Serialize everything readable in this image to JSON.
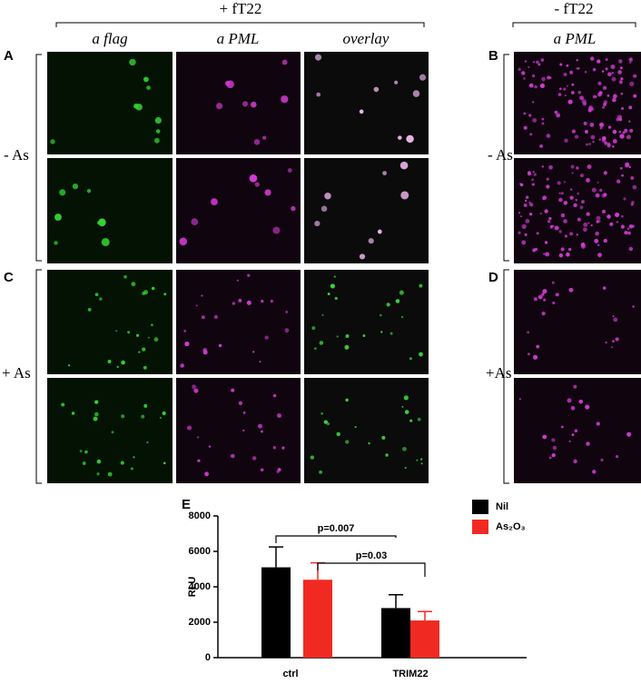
{
  "figure": {
    "headers": [
      {
        "label": "+ fT22"
      },
      {
        "label": "- fT22"
      }
    ],
    "columns": [
      "a flag",
      "a PML",
      "overlay",
      "a PML"
    ],
    "panel_letters": [
      "A",
      "B",
      "C",
      "D",
      "E"
    ],
    "row_labels": [
      "- As",
      "- As",
      "+ As",
      "+As"
    ]
  },
  "chart_data": {
    "type": "bar",
    "ylabel": "RLU",
    "categories": [
      "ctrl",
      "TRIM22"
    ],
    "series": [
      {
        "name": "Nil",
        "color": "#000000",
        "values": [
          5100,
          2800
        ],
        "errors": [
          1150,
          750
        ]
      },
      {
        "name": "As₂O₃",
        "color": "#f02a22",
        "values": [
          4400,
          2100
        ],
        "errors": [
          950,
          500
        ]
      }
    ],
    "ylim": [
      0,
      8000
    ],
    "yticks": [
      0,
      2000,
      4000,
      6000,
      8000
    ],
    "annotations": [
      "p=0.007",
      "p=0.03"
    ]
  }
}
